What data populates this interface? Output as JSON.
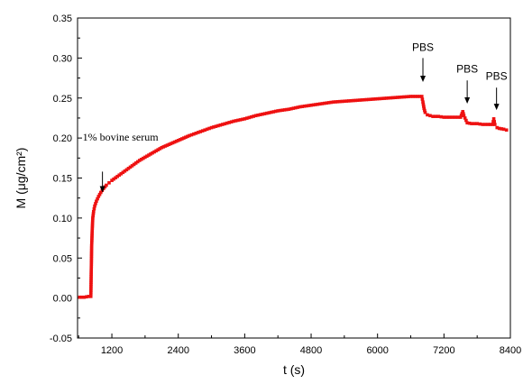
{
  "chart_data": {
    "type": "scatter",
    "xlabel": "t (s)",
    "ylabel": "M (μg/cm²)",
    "xlim": [
      580,
      8400
    ],
    "ylim": [
      -0.05,
      0.35
    ],
    "xticks": [
      1200,
      2400,
      3600,
      4800,
      6000,
      7200,
      8400
    ],
    "xtick_labels": [
      "1200",
      "2400",
      "3600",
      "4800",
      "6000",
      "7200",
      "8400"
    ],
    "yticks": [
      -0.05,
      0.0,
      0.05,
      0.1,
      0.15,
      0.2,
      0.25,
      0.3,
      0.35
    ],
    "ytick_labels": [
      "-0.05",
      "0.00",
      "0.05",
      "0.10",
      "0.15",
      "0.20",
      "0.25",
      "0.30",
      "0.35"
    ],
    "grid": false,
    "colors": {
      "series": "#ee1111",
      "axis": "#000000",
      "text": "#000000"
    },
    "series": [
      {
        "marker": "square",
        "points": [
          [
            620,
            0.001
          ],
          [
            700,
            0.001
          ],
          [
            780,
            0.002
          ],
          [
            820,
            0.002
          ],
          [
            835,
            0.065
          ],
          [
            845,
            0.085
          ],
          [
            855,
            0.1
          ],
          [
            870,
            0.108
          ],
          [
            890,
            0.115
          ],
          [
            920,
            0.121
          ],
          [
            960,
            0.127
          ],
          [
            1000,
            0.132
          ],
          [
            1050,
            0.137
          ],
          [
            1100,
            0.141
          ],
          [
            1150,
            0.144
          ],
          [
            1200,
            0.147
          ],
          [
            1300,
            0.152
          ],
          [
            1400,
            0.157
          ],
          [
            1500,
            0.162
          ],
          [
            1600,
            0.167
          ],
          [
            1700,
            0.172
          ],
          [
            1800,
            0.176
          ],
          [
            1900,
            0.18
          ],
          [
            2000,
            0.184
          ],
          [
            2100,
            0.188
          ],
          [
            2200,
            0.191
          ],
          [
            2300,
            0.194
          ],
          [
            2400,
            0.197
          ],
          [
            2600,
            0.203
          ],
          [
            2800,
            0.208
          ],
          [
            3000,
            0.213
          ],
          [
            3200,
            0.217
          ],
          [
            3400,
            0.221
          ],
          [
            3600,
            0.224
          ],
          [
            3800,
            0.228
          ],
          [
            4000,
            0.231
          ],
          [
            4200,
            0.234
          ],
          [
            4400,
            0.236
          ],
          [
            4600,
            0.239
          ],
          [
            4800,
            0.241
          ],
          [
            5000,
            0.243
          ],
          [
            5200,
            0.245
          ],
          [
            5400,
            0.246
          ],
          [
            5600,
            0.247
          ],
          [
            5800,
            0.248
          ],
          [
            6000,
            0.249
          ],
          [
            6200,
            0.25
          ],
          [
            6400,
            0.251
          ],
          [
            6600,
            0.252
          ],
          [
            6800,
            0.252
          ],
          [
            6820,
            0.245
          ],
          [
            6840,
            0.237
          ],
          [
            6860,
            0.232
          ],
          [
            6900,
            0.229
          ],
          [
            6950,
            0.228
          ],
          [
            7000,
            0.227
          ],
          [
            7100,
            0.227
          ],
          [
            7200,
            0.226
          ],
          [
            7300,
            0.226
          ],
          [
            7400,
            0.226
          ],
          [
            7500,
            0.226
          ],
          [
            7540,
            0.233
          ],
          [
            7560,
            0.228
          ],
          [
            7600,
            0.222
          ],
          [
            7620,
            0.219
          ],
          [
            7700,
            0.218
          ],
          [
            7800,
            0.218
          ],
          [
            7900,
            0.217
          ],
          [
            8000,
            0.217
          ],
          [
            8080,
            0.217
          ],
          [
            8100,
            0.224
          ],
          [
            8120,
            0.217
          ],
          [
            8160,
            0.213
          ],
          [
            8200,
            0.212
          ],
          [
            8280,
            0.211
          ],
          [
            8330,
            0.21
          ]
        ]
      }
    ],
    "annotations": [
      {
        "text": "1% bovine serum",
        "arrow_x": 1030,
        "arrow_from_y": 0.158,
        "arrow_to_y": 0.132,
        "label_y": 0.2,
        "font": "serif"
      },
      {
        "text": "PBS",
        "arrow_x": 6820,
        "arrow_from_y": 0.3,
        "arrow_to_y": 0.27,
        "label_y": 0.312,
        "font": "sans"
      },
      {
        "text": "PBS",
        "arrow_x": 7620,
        "arrow_from_y": 0.272,
        "arrow_to_y": 0.243,
        "label_y": 0.285,
        "font": "sans"
      },
      {
        "text": "PBS",
        "arrow_x": 8150,
        "arrow_from_y": 0.263,
        "arrow_to_y": 0.235,
        "label_y": 0.276,
        "font": "sans"
      }
    ]
  }
}
